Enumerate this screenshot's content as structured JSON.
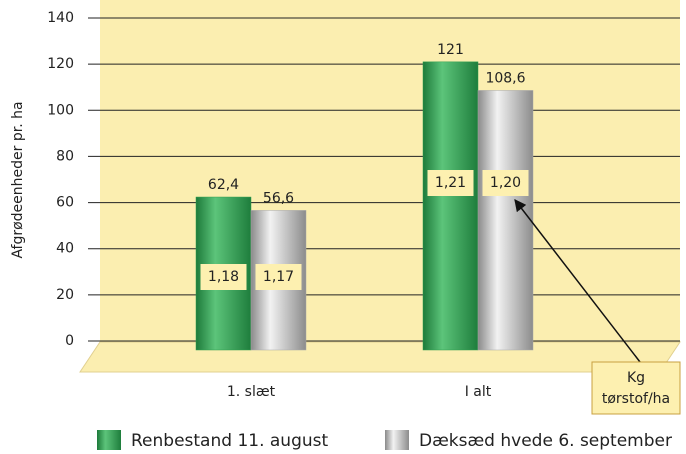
{
  "chart_data": {
    "type": "bar",
    "y_label": "Afgrødeenheder pr. ha",
    "categories": [
      "1. slæt",
      "I alt"
    ],
    "series": [
      {
        "name": "Renbestand 11. august",
        "color": "#2e9e4f",
        "values": [
          62.4,
          121
        ],
        "value_labels": [
          "62,4",
          "121"
        ],
        "inner_labels": [
          "1,18",
          "1,21"
        ]
      },
      {
        "name": "Dæksæd hvede 6. september",
        "color": "#a9a9a9",
        "values": [
          56.6,
          108.6
        ],
        "value_labels": [
          "56,6",
          "108,6"
        ],
        "inner_labels": [
          "1,17",
          "1,20"
        ]
      }
    ],
    "annotation": [
      "Kg",
      "tørstof/ha"
    ],
    "ylim": [
      0,
      140
    ],
    "yticks": [
      0,
      20,
      40,
      60,
      80,
      100,
      120,
      140
    ],
    "grid": true
  }
}
